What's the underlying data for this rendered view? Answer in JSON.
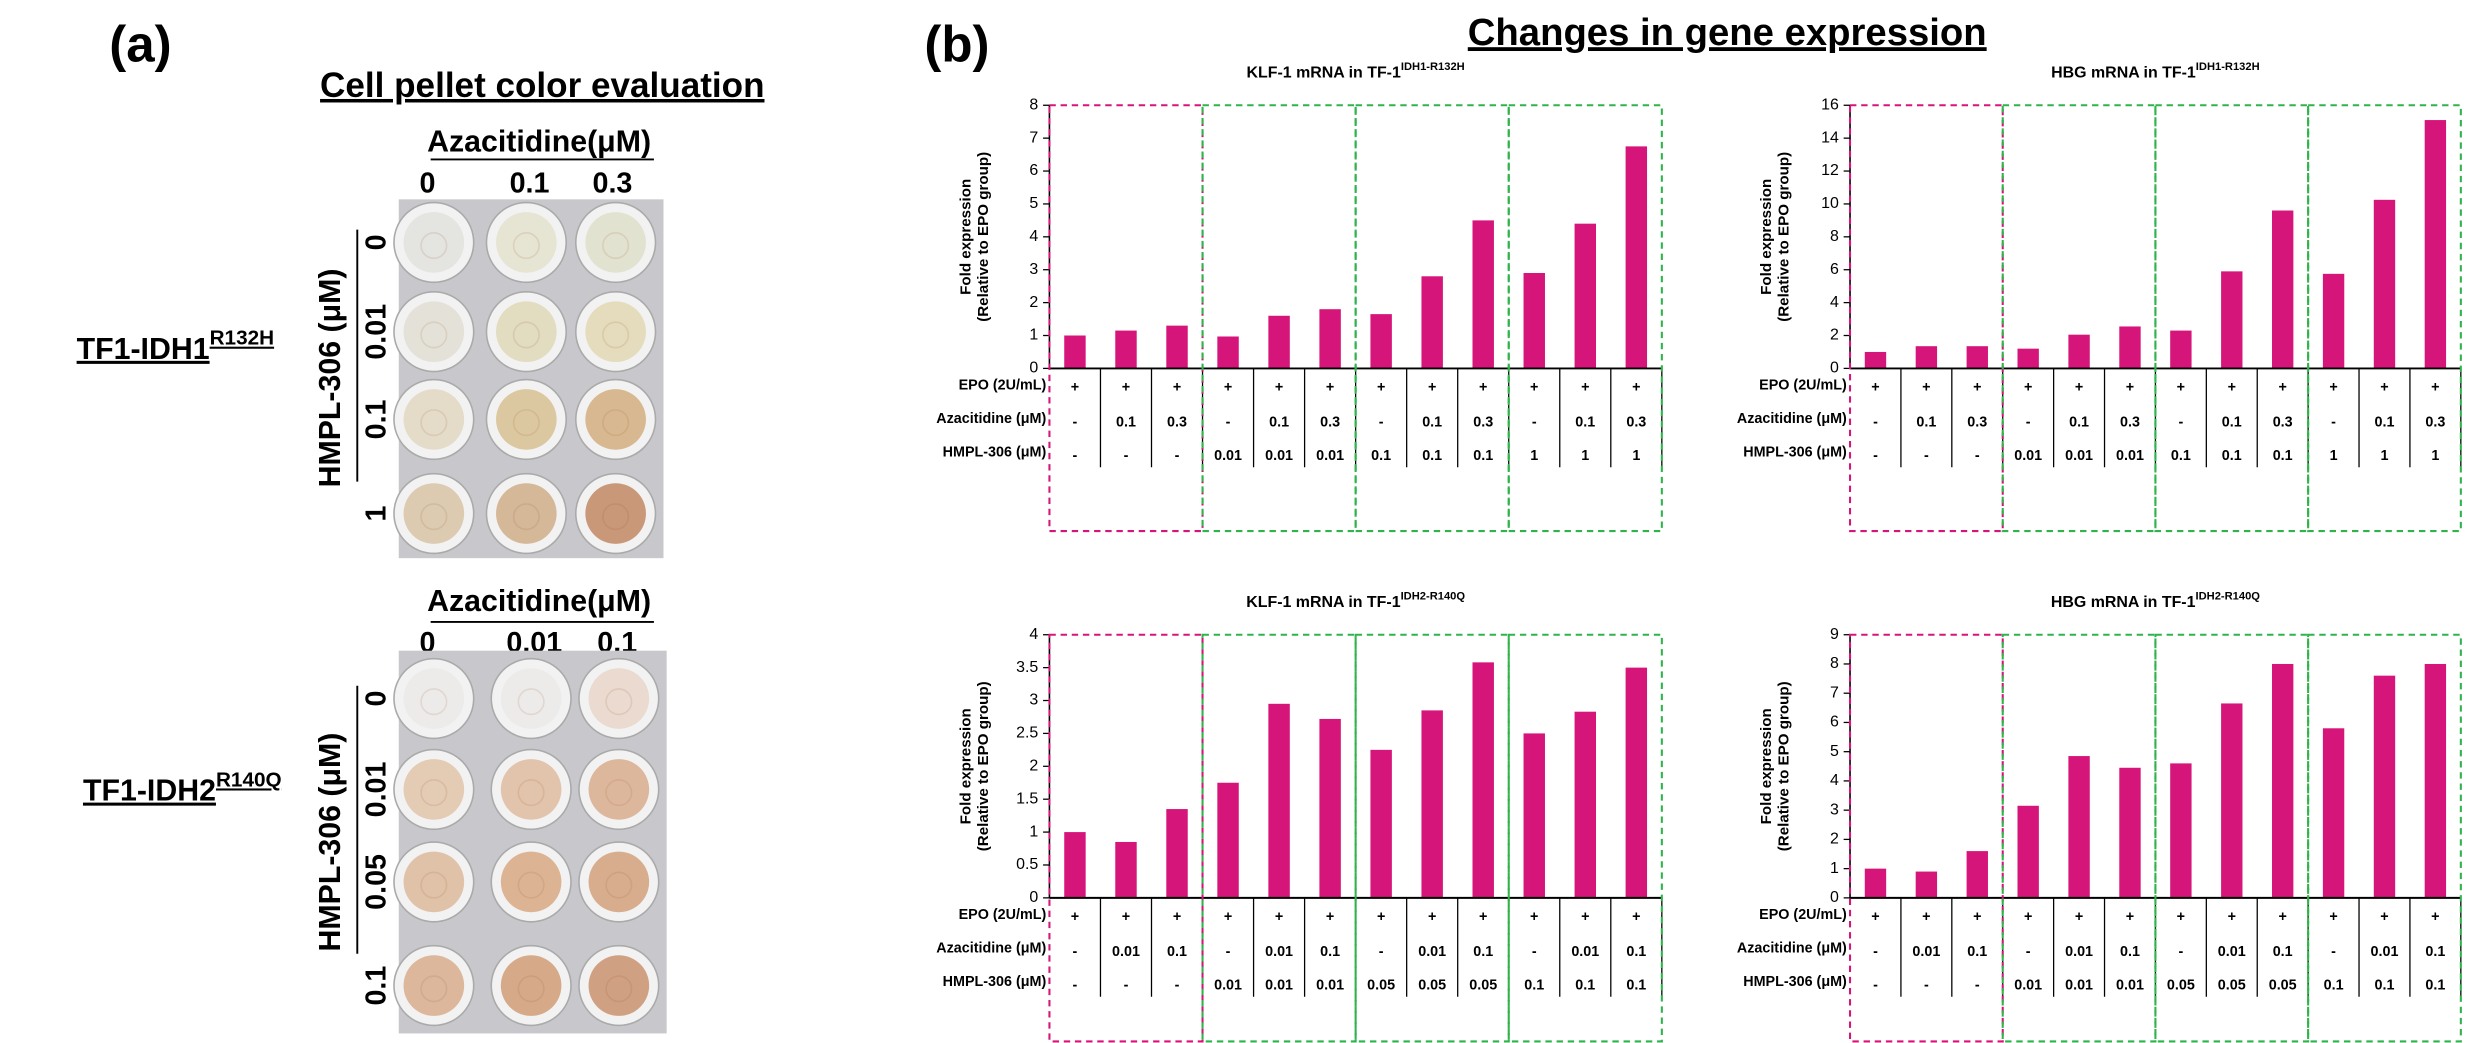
{
  "panel_a": {
    "label": "(a)",
    "title": "Cell pellet color evaluation",
    "plates": [
      {
        "sample": "TF1-IDH1",
        "sample_superscript": "R132H",
        "col_title": "Azacitidine(μM)",
        "cols": [
          "0",
          "0.1",
          "0.3"
        ],
        "row_title": "HMPL-306 (μM)",
        "rows": [
          "0",
          "0.01",
          "0.1",
          "1"
        ]
      },
      {
        "sample": "TF1-IDH2",
        "sample_superscript": "R140Q",
        "col_title": "Azacitidine(μM)",
        "cols": [
          "0",
          "0.01",
          "0.1"
        ],
        "row_title": "HMPL-306 (μM)",
        "rows": [
          "0",
          "0.01",
          "0.05",
          "0.1"
        ]
      }
    ]
  },
  "panel_b": {
    "label": "(b)",
    "title": "Changes in gene expression"
  },
  "chart_data": [
    {
      "type": "bar",
      "title": "KLF-1 mRNA in TF-1",
      "title_superscript": "IDH1-R132H",
      "ylabel": [
        "Fold expression",
        "(Relative to EPO group)"
      ],
      "ylim": [
        0,
        8
      ],
      "yticks": [
        0,
        1,
        2,
        3,
        4,
        5,
        6,
        7,
        8
      ],
      "color": "#d6157a",
      "values": [
        1.0,
        1.15,
        1.3,
        0.97,
        1.6,
        1.8,
        1.65,
        2.8,
        4.5,
        2.9,
        4.4,
        6.75
      ],
      "conditions": [
        {
          "label": "EPO (2U/mL)",
          "values": [
            "+",
            "+",
            "+",
            "+",
            "+",
            "+",
            "+",
            "+",
            "+",
            "+",
            "+",
            "+"
          ]
        },
        {
          "label": "Azacitidine (μM)",
          "values": [
            "-",
            "0.1",
            "0.3",
            "-",
            "0.1",
            "0.3",
            "-",
            "0.1",
            "0.3",
            "-",
            "0.1",
            "0.3"
          ]
        },
        {
          "label": "HMPL-306 (μM)",
          "values": [
            "-",
            "-",
            "-",
            "0.01",
            "0.01",
            "0.01",
            "0.1",
            "0.1",
            "0.1",
            "1",
            "1",
            "1"
          ]
        }
      ]
    },
    {
      "type": "bar",
      "title": "HBG mRNA in TF-1",
      "title_superscript": "IDH1-R132H",
      "ylabel": [
        "Fold expression",
        "(Relative to EPO group)"
      ],
      "ylim": [
        0,
        16
      ],
      "yticks": [
        0,
        2,
        4,
        6,
        8,
        10,
        12,
        14,
        16
      ],
      "color": "#d6157a",
      "values": [
        1.0,
        1.35,
        1.35,
        1.2,
        2.05,
        2.55,
        2.3,
        5.9,
        9.6,
        5.75,
        10.25,
        15.1
      ],
      "conditions": [
        {
          "label": "EPO (2U/mL)",
          "values": [
            "+",
            "+",
            "+",
            "+",
            "+",
            "+",
            "+",
            "+",
            "+",
            "+",
            "+",
            "+"
          ]
        },
        {
          "label": "Azacitidine (μM)",
          "values": [
            "-",
            "0.1",
            "0.3",
            "-",
            "0.1",
            "0.3",
            "-",
            "0.1",
            "0.3",
            "-",
            "0.1",
            "0.3"
          ]
        },
        {
          "label": "HMPL-306 (μM)",
          "values": [
            "-",
            "-",
            "-",
            "0.01",
            "0.01",
            "0.01",
            "0.1",
            "0.1",
            "0.1",
            "1",
            "1",
            "1"
          ]
        }
      ]
    },
    {
      "type": "bar",
      "title": "KLF-1 mRNA in TF-1",
      "title_superscript": "IDH2-R140Q",
      "ylabel": [
        "Fold expression",
        "(Relative to EPO group)"
      ],
      "ylim": [
        0,
        4
      ],
      "yticks": [
        0,
        0.5,
        1,
        1.5,
        2,
        2.5,
        3,
        3.5,
        4
      ],
      "color": "#d6157a",
      "values": [
        1.0,
        0.85,
        1.35,
        1.75,
        2.95,
        2.72,
        2.25,
        2.85,
        3.58,
        2.5,
        2.83,
        3.5
      ],
      "conditions": [
        {
          "label": "EPO (2U/mL)",
          "values": [
            "+",
            "+",
            "+",
            "+",
            "+",
            "+",
            "+",
            "+",
            "+",
            "+",
            "+",
            "+"
          ]
        },
        {
          "label": "Azacitidine (μM)",
          "values": [
            "-",
            "0.01",
            "0.1",
            "-",
            "0.01",
            "0.1",
            "-",
            "0.01",
            "0.1",
            "-",
            "0.01",
            "0.1"
          ]
        },
        {
          "label": "HMPL-306 (μM)",
          "values": [
            "-",
            "-",
            "-",
            "0.01",
            "0.01",
            "0.01",
            "0.05",
            "0.05",
            "0.05",
            "0.1",
            "0.1",
            "0.1"
          ]
        }
      ]
    },
    {
      "type": "bar",
      "title": "HBG mRNA in TF-1",
      "title_superscript": "IDH2-R140Q",
      "ylabel": [
        "Fold expression",
        "(Relative to EPO group)"
      ],
      "ylim": [
        0,
        9
      ],
      "yticks": [
        0,
        1,
        2,
        3,
        4,
        5,
        6,
        7,
        8,
        9
      ],
      "color": "#d6157a",
      "values": [
        1.0,
        0.9,
        1.6,
        3.15,
        4.85,
        4.45,
        4.6,
        6.65,
        8.0,
        5.8,
        7.6,
        8.0
      ],
      "conditions": [
        {
          "label": "EPO (2U/mL)",
          "values": [
            "+",
            "+",
            "+",
            "+",
            "+",
            "+",
            "+",
            "+",
            "+",
            "+",
            "+",
            "+"
          ]
        },
        {
          "label": "Azacitidine (μM)",
          "values": [
            "-",
            "0.01",
            "0.1",
            "-",
            "0.01",
            "0.1",
            "-",
            "0.01",
            "0.1",
            "-",
            "0.01",
            "0.1"
          ]
        },
        {
          "label": "HMPL-306 (μM)",
          "values": [
            "-",
            "-",
            "-",
            "0.01",
            "0.01",
            "0.01",
            "0.05",
            "0.05",
            "0.05",
            "0.1",
            "0.1",
            "0.1"
          ]
        }
      ]
    }
  ]
}
